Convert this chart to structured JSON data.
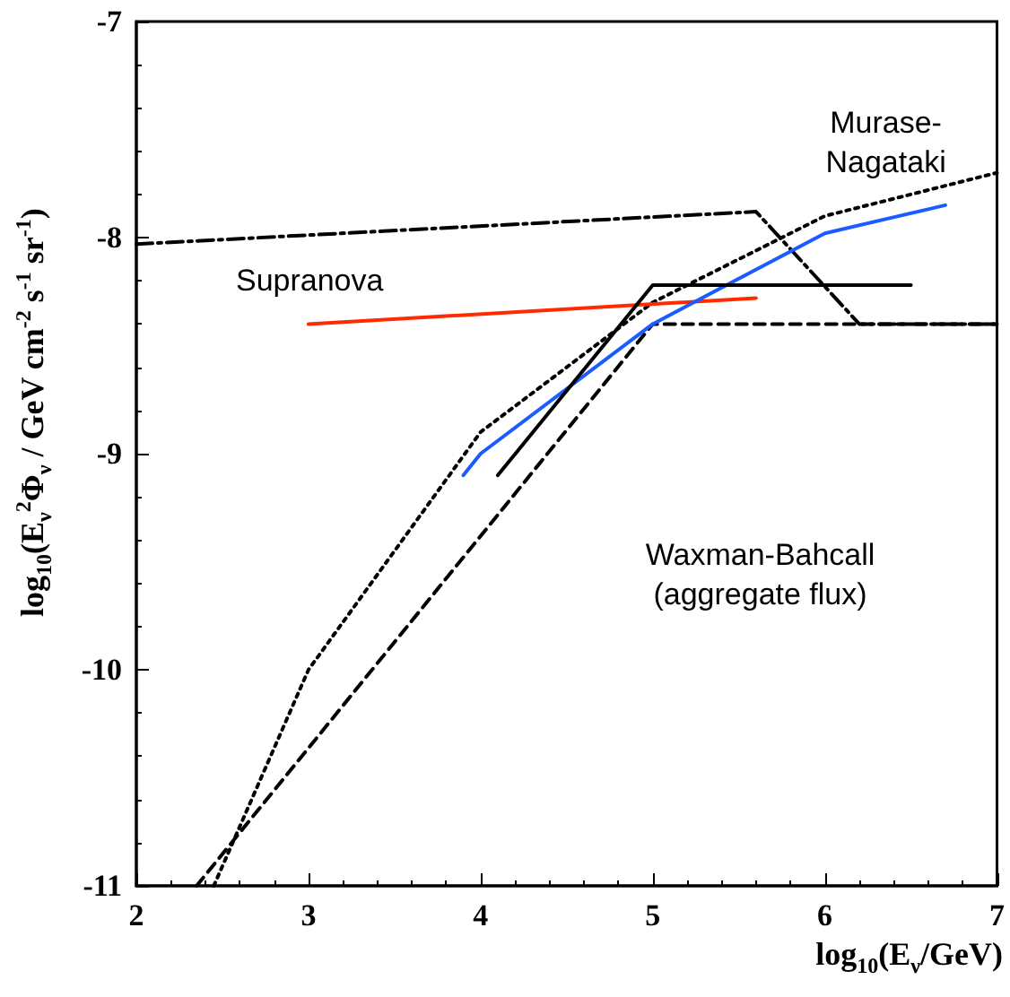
{
  "chart_data": {
    "type": "line",
    "xlabel": "log$_{10}$(E$_{ν}$/GeV)",
    "ylabel": "log$_{10}$(E$_{ν}$$^{2}$Φ$_{ν}$ / GeV cm$^{-2}$ s$^{-1}$ sr$^{-1}$)",
    "xlim": [
      2,
      7
    ],
    "xticks": [
      2,
      3,
      4,
      5,
      6,
      7
    ],
    "ylim": [
      -11,
      -7
    ],
    "yticks": [
      -11,
      -10,
      -9,
      -8,
      -7
    ],
    "grid": false,
    "marker": "none",
    "series": [
      {
        "color": "#000000",
        "line_style": "dashdot",
        "x": [
          2,
          5.6,
          6.2,
          7
        ],
        "values": [
          -8.03,
          -7.88,
          -8.4,
          -8.4
        ]
      },
      {
        "color": "#000000",
        "line_style": "dotted",
        "x": [
          2.45,
          3,
          4,
          5,
          6,
          7
        ],
        "values": [
          -11,
          -10,
          -8.9,
          -8.3,
          -7.9,
          -7.7
        ]
      },
      {
        "color": "#000000",
        "line_style": "dashed",
        "x": [
          2.35,
          5,
          7
        ],
        "values": [
          -11,
          -8.4,
          -8.4
        ]
      },
      {
        "color": "#ff2a00",
        "line_style": "solid",
        "x": [
          3,
          5.6
        ],
        "values": [
          -8.4,
          -8.28
        ]
      },
      {
        "color": "#1a5cff",
        "line_style": "solid",
        "x": [
          3.9,
          4,
          5,
          6,
          6.7
        ],
        "values": [
          -9.1,
          -9.0,
          -8.4,
          -7.98,
          -7.85
        ]
      },
      {
        "color": "#000000",
        "line_style": "solid",
        "x": [
          4.1,
          5,
          6.5
        ],
        "values": [
          -9.1,
          -8.22,
          -8.22
        ]
      }
    ],
    "annotations": [
      "Murase-\nNagataki",
      "Supranova",
      "Waxman-Bahcall\n(aggregate flux)"
    ]
  }
}
